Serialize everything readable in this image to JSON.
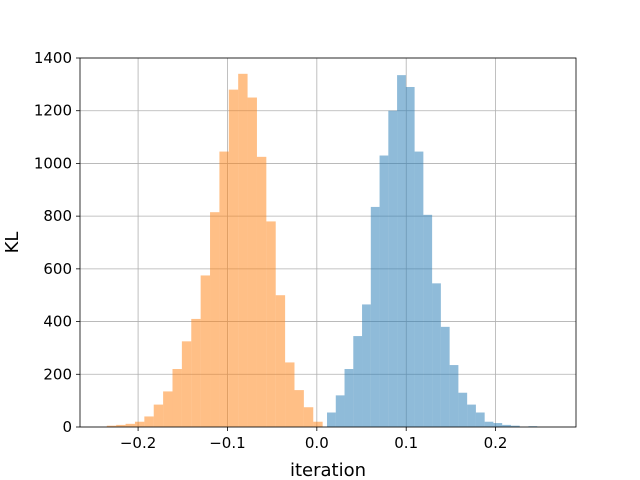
{
  "chart_data": {
    "type": "histogram",
    "title": "",
    "xlabel": "iteration",
    "ylabel": "KL",
    "xlim": [
      -0.265,
      0.29
    ],
    "ylim": [
      0,
      1400
    ],
    "xticks": [
      -0.2,
      -0.1,
      0.0,
      0.1,
      0.2
    ],
    "xtick_labels": [
      "−0.2",
      "−0.1",
      "0.0",
      "0.1",
      "0.2"
    ],
    "yticks": [
      0,
      200,
      400,
      600,
      800,
      1000,
      1200,
      1400
    ],
    "ytick_labels": [
      "0",
      "200",
      "400",
      "600",
      "800",
      "1000",
      "1200",
      "1400"
    ],
    "grid": true,
    "legend": false,
    "series": [
      {
        "color": "#ff7f0e",
        "alpha": 0.5,
        "bin_width": 0.0105,
        "bins": [
          [
            -0.235,
            5
          ],
          [
            -0.2245,
            8
          ],
          [
            -0.214,
            12
          ],
          [
            -0.2035,
            20
          ],
          [
            -0.193,
            40
          ],
          [
            -0.1825,
            85
          ],
          [
            -0.172,
            135
          ],
          [
            -0.1615,
            220
          ],
          [
            -0.151,
            325
          ],
          [
            -0.1405,
            410
          ],
          [
            -0.13,
            575
          ],
          [
            -0.1195,
            815
          ],
          [
            -0.109,
            1045
          ],
          [
            -0.0985,
            1280
          ],
          [
            -0.088,
            1340
          ],
          [
            -0.0775,
            1250
          ],
          [
            -0.067,
            1025
          ],
          [
            -0.0565,
            780
          ],
          [
            -0.046,
            500
          ],
          [
            -0.0355,
            245
          ],
          [
            -0.025,
            140
          ],
          [
            -0.0145,
            75
          ],
          [
            -0.004,
            20
          ]
        ]
      },
      {
        "color": "#1f77b4",
        "alpha": 0.5,
        "bin_width": 0.0098,
        "bins": [
          [
            0.0114,
            55
          ],
          [
            0.0212,
            120
          ],
          [
            0.031,
            220
          ],
          [
            0.0408,
            345
          ],
          [
            0.0506,
            465
          ],
          [
            0.0604,
            835
          ],
          [
            0.0702,
            1030
          ],
          [
            0.08,
            1200
          ],
          [
            0.0898,
            1335
          ],
          [
            0.0996,
            1290
          ],
          [
            0.1094,
            1045
          ],
          [
            0.1192,
            805
          ],
          [
            0.129,
            545
          ],
          [
            0.1388,
            380
          ],
          [
            0.1486,
            235
          ],
          [
            0.1584,
            130
          ],
          [
            0.1682,
            85
          ],
          [
            0.178,
            55
          ],
          [
            0.1878,
            20
          ],
          [
            0.1976,
            15
          ],
          [
            0.2074,
            8
          ],
          [
            0.2172,
            5
          ],
          [
            0.227,
            0
          ],
          [
            0.2368,
            3
          ]
        ]
      }
    ]
  }
}
